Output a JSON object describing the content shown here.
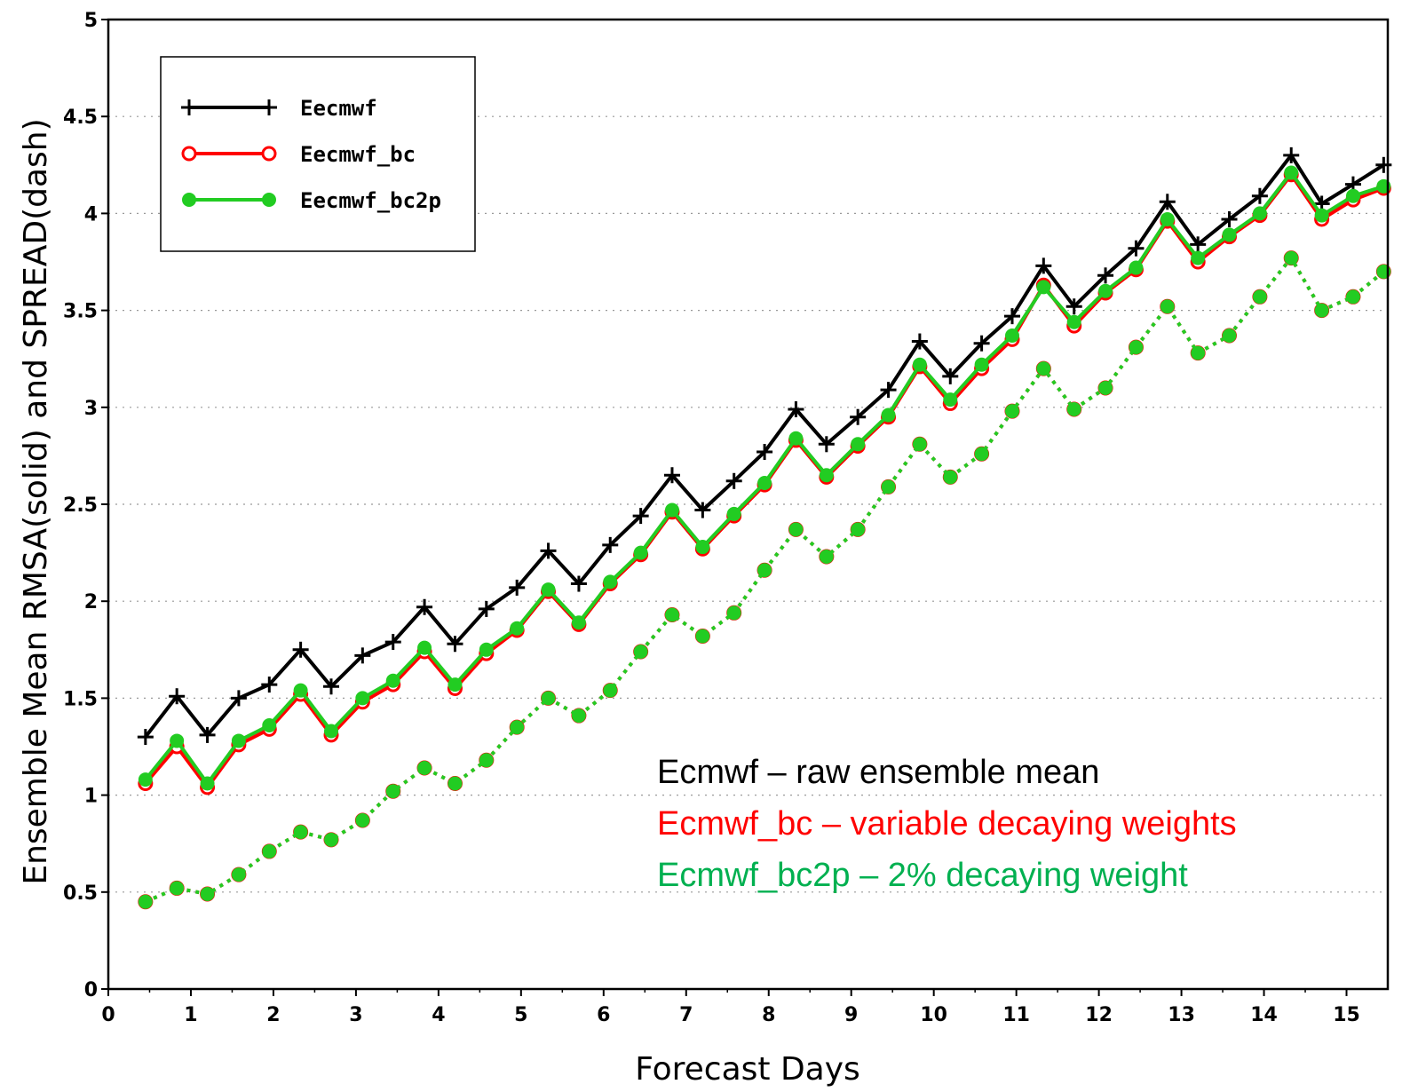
{
  "chart_data": {
    "type": "line",
    "xlabel": "Forecast Days",
    "ylabel": "Ensemble Mean RMSA(solid) and SPREAD(dash)",
    "xlim": [
      0,
      15.5
    ],
    "ylim": [
      0,
      5
    ],
    "x_ticks": [
      0,
      1,
      2,
      3,
      4,
      5,
      6,
      7,
      8,
      9,
      10,
      11,
      12,
      13,
      14,
      15
    ],
    "y_ticks": [
      0,
      0.5,
      1,
      1.5,
      2,
      2.5,
      3,
      3.5,
      4,
      4.5,
      5
    ],
    "y_tick_labels": [
      "0",
      "0.5",
      "1",
      "1.5",
      "2",
      "2.5",
      "3",
      "3.5",
      "4",
      "4.5",
      "5"
    ],
    "grid": "horizontal dotted",
    "legend_position": "top-left",
    "x": [
      0.45,
      0.83,
      1.2,
      1.58,
      1.95,
      2.33,
      2.7,
      3.08,
      3.45,
      3.83,
      4.2,
      4.58,
      4.95,
      5.33,
      5.7,
      6.08,
      6.45,
      6.83,
      7.2,
      7.58,
      7.95,
      8.33,
      8.7,
      9.08,
      9.45,
      9.83,
      10.2,
      10.58,
      10.95,
      11.33,
      11.7,
      12.08,
      12.45,
      12.83,
      13.2,
      13.58,
      13.95,
      14.33,
      14.7,
      15.08,
      15.45
    ],
    "series": [
      {
        "name": "Eecmwf",
        "style": "solid",
        "marker": "plus",
        "color": "#000000",
        "values": [
          1.3,
          1.51,
          1.31,
          1.5,
          1.57,
          1.75,
          1.56,
          1.72,
          1.79,
          1.97,
          1.78,
          1.96,
          2.07,
          2.26,
          2.09,
          2.29,
          2.44,
          2.65,
          2.47,
          2.62,
          2.77,
          2.99,
          2.81,
          2.95,
          3.09,
          3.34,
          3.16,
          3.33,
          3.47,
          3.73,
          3.52,
          3.68,
          3.82,
          4.06,
          3.84,
          3.97,
          4.09,
          4.3,
          4.05,
          4.15,
          4.25
        ]
      },
      {
        "name": "Eecmwf_bc",
        "style": "solid",
        "marker": "open-circle",
        "color": "#ff0000",
        "values": [
          1.06,
          1.25,
          1.04,
          1.26,
          1.34,
          1.52,
          1.31,
          1.48,
          1.57,
          1.74,
          1.55,
          1.73,
          1.85,
          2.05,
          1.88,
          2.09,
          2.24,
          2.46,
          2.27,
          2.44,
          2.6,
          2.83,
          2.64,
          2.8,
          2.95,
          3.21,
          3.02,
          3.2,
          3.35,
          3.63,
          3.42,
          3.59,
          3.71,
          3.96,
          3.75,
          3.88,
          3.99,
          4.2,
          3.97,
          4.07,
          4.13
        ]
      },
      {
        "name": "Eecmwf_bc2p",
        "style": "solid",
        "marker": "filled-circle",
        "color": "#22cc22",
        "values": [
          1.08,
          1.28,
          1.06,
          1.28,
          1.36,
          1.54,
          1.33,
          1.5,
          1.59,
          1.76,
          1.57,
          1.75,
          1.86,
          2.06,
          1.89,
          2.1,
          2.25,
          2.47,
          2.28,
          2.45,
          2.61,
          2.84,
          2.65,
          2.81,
          2.96,
          3.22,
          3.04,
          3.22,
          3.37,
          3.62,
          3.44,
          3.6,
          3.72,
          3.97,
          3.77,
          3.89,
          4.0,
          4.21,
          3.99,
          4.09,
          4.14
        ]
      },
      {
        "name": "",
        "style": "dashed",
        "marker": "open-circle",
        "color": "#ff0000",
        "values": [
          0.45,
          0.52,
          0.49,
          0.59,
          0.71,
          0.81,
          0.77,
          0.87,
          1.02,
          1.14,
          1.06,
          1.18,
          1.35,
          1.5,
          1.41,
          1.54,
          1.74,
          1.93,
          1.82,
          1.94,
          2.16,
          2.37,
          2.23,
          2.37,
          2.59,
          2.81,
          2.64,
          2.76,
          2.98,
          3.2,
          2.99,
          3.1,
          3.31,
          3.52,
          3.28,
          3.37,
          3.57,
          3.77,
          3.5,
          3.57,
          3.7
        ]
      },
      {
        "name": "",
        "style": "dashed",
        "marker": "filled-circle",
        "color": "#22cc22",
        "values": [
          0.45,
          0.52,
          0.49,
          0.59,
          0.71,
          0.81,
          0.77,
          0.87,
          1.02,
          1.14,
          1.06,
          1.18,
          1.35,
          1.5,
          1.41,
          1.54,
          1.74,
          1.93,
          1.82,
          1.94,
          2.16,
          2.37,
          2.23,
          2.37,
          2.59,
          2.81,
          2.64,
          2.76,
          2.98,
          3.2,
          2.99,
          3.1,
          3.31,
          3.52,
          3.28,
          3.37,
          3.57,
          3.77,
          3.5,
          3.57,
          3.7
        ]
      }
    ],
    "legend_entries": [
      "Eecmwf",
      "Eecmwf_bc",
      "Eecmwf_bc2p"
    ],
    "annotations": [
      {
        "text": "Ecmwf – raw ensemble mean",
        "color": "#000000"
      },
      {
        "text": "Ecmwf_bc – variable decaying weights",
        "color": "#ff0000"
      },
      {
        "text": "Ecmwf_bc2p – 2% decaying weight",
        "color": "#00b050"
      }
    ]
  }
}
